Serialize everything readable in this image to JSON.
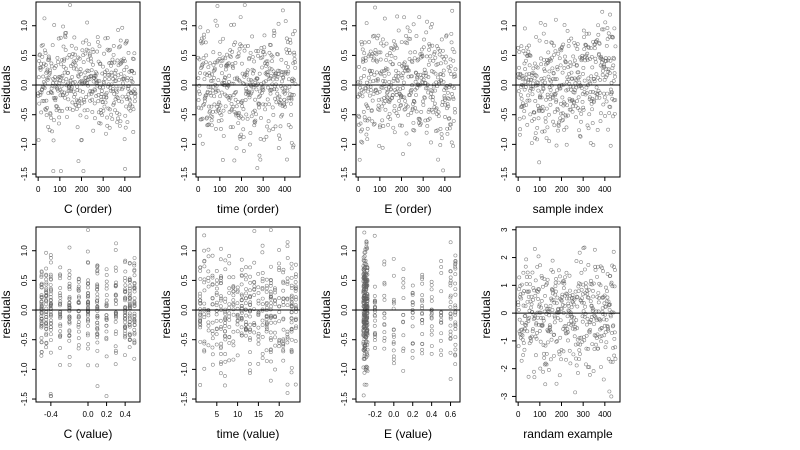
{
  "chart_data": [
    {
      "type": "scatter",
      "xlabel": "C (order)",
      "ylabel": "residuals",
      "xlim": [
        -10,
        470
      ],
      "ylim": [
        -1.55,
        1.4
      ],
      "xticks": [
        0,
        100,
        200,
        300,
        400
      ],
      "xtick_labels": [
        "0",
        "100",
        "200",
        "300",
        "400"
      ],
      "yticks": [
        -1.5,
        -1.0,
        -0.5,
        0.0,
        0.5,
        1.0
      ],
      "ytick_labels": [
        "-1.5",
        "-1.0",
        "-0.5",
        "0.0",
        "0.5",
        "1.0"
      ],
      "reference_line_y": 0,
      "x_source": "index",
      "y_source": "r1",
      "n_points": 450
    },
    {
      "type": "scatter",
      "xlabel": "time (order)",
      "ylabel": "residuals",
      "xlim": [
        -10,
        470
      ],
      "ylim": [
        -1.55,
        1.4
      ],
      "xticks": [
        0,
        100,
        200,
        300,
        400
      ],
      "xtick_labels": [
        "0",
        "100",
        "200",
        "300",
        "400"
      ],
      "yticks": [
        -1.5,
        -1.0,
        -0.5,
        0.0,
        0.5,
        1.0
      ],
      "ytick_labels": [
        "-1.5",
        "-1.0",
        "-0.5",
        "0.0",
        "0.5",
        "1.0"
      ],
      "reference_line_y": 0,
      "x_source": "index",
      "y_source": "r2",
      "n_points": 450
    },
    {
      "type": "scatter",
      "xlabel": "E (order)",
      "ylabel": "residuals",
      "xlim": [
        -10,
        470
      ],
      "ylim": [
        -1.55,
        1.4
      ],
      "xticks": [
        0,
        100,
        200,
        300,
        400
      ],
      "xtick_labels": [
        "0",
        "100",
        "200",
        "300",
        "400"
      ],
      "yticks": [
        -1.5,
        -1.0,
        -0.5,
        0.0,
        0.5,
        1.0
      ],
      "ytick_labels": [
        "-1.5",
        "-1.0",
        "-0.5",
        "0.0",
        "0.5",
        "1.0"
      ],
      "reference_line_y": 0,
      "x_source": "index",
      "y_source": "r3",
      "n_points": 450
    },
    {
      "type": "scatter",
      "xlabel": "sample index",
      "ylabel": "residuals",
      "xlim": [
        -10,
        470
      ],
      "ylim": [
        -1.55,
        1.4
      ],
      "xticks": [
        0,
        100,
        200,
        300,
        400
      ],
      "xtick_labels": [
        "0",
        "100",
        "200",
        "300",
        "400"
      ],
      "yticks": [
        -1.5,
        -1.0,
        -0.5,
        0.0,
        0.5,
        1.0
      ],
      "ytick_labels": [
        "-1.5",
        "-1.0",
        "-0.5",
        "0.0",
        "0.5",
        "1.0"
      ],
      "reference_line_y": 0,
      "x_source": "index",
      "y_source": "r4",
      "n_points": 450
    },
    {
      "type": "scatter",
      "xlabel": "C (value)",
      "ylabel": "residuals",
      "xlim": [
        -0.56,
        0.56
      ],
      "ylim": [
        -1.55,
        1.4
      ],
      "xticks": [
        -0.4,
        0.0,
        0.2,
        0.4
      ],
      "xtick_labels": [
        "-0.4",
        "0.0",
        "0.2",
        "0.4"
      ],
      "yticks": [
        -1.5,
        -1.0,
        -0.5,
        0.0,
        0.5,
        1.0
      ],
      "ytick_labels": [
        "-1.5",
        "-1.0",
        "-0.5",
        "0.0",
        "0.5",
        "1.0"
      ],
      "reference_line_y": 0,
      "x_source": "C_levels",
      "x_levels": [
        -0.5,
        -0.45,
        -0.4,
        -0.3,
        -0.2,
        -0.1,
        0.0,
        0.1,
        0.2,
        0.3,
        0.4,
        0.45,
        0.5
      ],
      "y_source": "r1",
      "n_points": 450
    },
    {
      "type": "scatter",
      "xlabel": "time (value)",
      "ylabel": "residuals",
      "xlim": [
        0,
        25
      ],
      "ylim": [
        -1.55,
        1.4
      ],
      "xticks": [
        5,
        10,
        15,
        20
      ],
      "xtick_labels": [
        "5",
        "10",
        "15",
        "20"
      ],
      "yticks": [
        -1.5,
        -1.0,
        -0.5,
        0.0,
        0.5,
        1.0
      ],
      "ytick_labels": [
        "-1.5",
        "-1.0",
        "-0.5",
        "0.0",
        "0.5",
        "1.0"
      ],
      "reference_line_y": 0,
      "x_source": "time_levels",
      "x_levels": [
        1,
        2,
        3,
        4,
        5,
        6,
        7,
        8,
        9,
        10,
        11,
        12,
        13,
        14,
        15,
        16,
        17,
        18,
        19,
        20,
        21,
        22,
        23,
        24
      ],
      "y_source": "r2",
      "n_points": 450
    },
    {
      "type": "scatter",
      "xlabel": "E (value)",
      "ylabel": "residuals",
      "xlim": [
        -0.4,
        0.7
      ],
      "ylim": [
        -1.55,
        1.4
      ],
      "xticks": [
        -0.2,
        0.0,
        0.2,
        0.4,
        0.6
      ],
      "xtick_labels": [
        "-0.2",
        "0.0",
        "0.2",
        "0.4",
        "0.6"
      ],
      "yticks": [
        -1.5,
        -1.0,
        -0.5,
        0.0,
        0.5,
        1.0
      ],
      "ytick_labels": [
        "-1.5",
        "-1.0",
        "-0.5",
        "0.0",
        "0.5",
        "1.0"
      ],
      "reference_line_y": 0,
      "x_source": "E_levels",
      "x_levels": [
        -0.32,
        -0.31,
        -0.3,
        -0.29,
        -0.28,
        -0.2,
        -0.1,
        0.0,
        0.1,
        0.2,
        0.3,
        0.4,
        0.5,
        0.6,
        0.65
      ],
      "y_source": "r3",
      "n_points": 450
    },
    {
      "type": "scatter",
      "xlabel": "randam example",
      "ylabel": "residuals",
      "xlim": [
        -10,
        470
      ],
      "ylim": [
        -3.2,
        3.1
      ],
      "xticks": [
        0,
        100,
        200,
        300,
        400
      ],
      "xtick_labels": [
        "0",
        "100",
        "200",
        "300",
        "400"
      ],
      "yticks": [
        -3,
        -2,
        -1,
        0,
        1,
        2,
        3
      ],
      "ytick_labels": [
        "-3",
        "-2",
        "-1",
        "0",
        "1",
        "2",
        "3"
      ],
      "reference_line_y": 0,
      "x_source": "index",
      "y_source": "r5",
      "n_points": 450
    }
  ],
  "colors": {
    "points": "#606060",
    "axes": "#000000",
    "background": "#ffffff"
  },
  "point_style": "open-circle"
}
